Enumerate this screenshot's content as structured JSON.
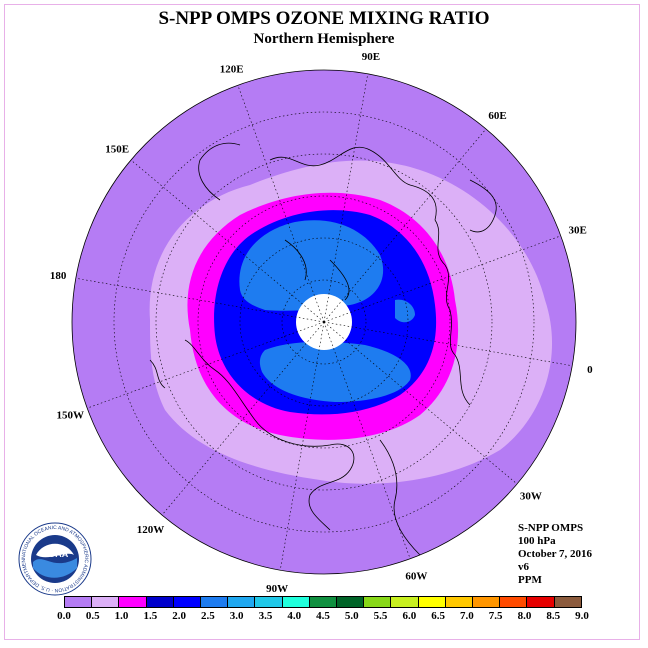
{
  "title": "S-NPP OMPS OZONE MIXING RATIO",
  "subtitle": "Northern Hemisphere",
  "longitude_labels": [
    "90E",
    "60E",
    "30E",
    "0",
    "30W",
    "60W",
    "90W",
    "120W",
    "150W",
    "180",
    "150E",
    "120E"
  ],
  "info": {
    "instrument": "S-NPP OMPS",
    "level": "100 hPa",
    "date": "October 7, 2016",
    "version": "v6",
    "units": "PPM"
  },
  "logo": {
    "text": "NOAA",
    "ring_text": "NATIONAL OCEANIC AND ATMOSPHERIC ADMINISTRATION · U.S. DEPARTMENT OF COMMERCE"
  },
  "colorbar": {
    "ticks": [
      "0.0",
      "0.5",
      "1.0",
      "1.5",
      "2.0",
      "2.5",
      "3.0",
      "3.5",
      "4.0",
      "4.5",
      "5.0",
      "5.5",
      "6.0",
      "6.5",
      "7.0",
      "7.5",
      "8.0",
      "8.5",
      "9.0"
    ],
    "colors": [
      "#b57cf4",
      "#dcb0f7",
      "#ff00ff",
      "#0000cc",
      "#0000ff",
      "#1e7cf0",
      "#20a8f0",
      "#20c8e8",
      "#20ffdc",
      "#109040",
      "#006428",
      "#88d818",
      "#c8f020",
      "#ffff00",
      "#ffc800",
      "#ff9600",
      "#ff4b00",
      "#e60000",
      "#8b5a3c"
    ]
  },
  "map_colors": {
    "background": "#b57cf4",
    "band_0_5_1_0": "#dcb0f7",
    "band_1_0_1_5": "#ff00ff",
    "band_1_5_2_0": "#0000ff",
    "band_2_0_2_5": "#1e7cf0",
    "band_2_5_3_0": "#20a8f0",
    "pole_no_data": "#ffffff"
  }
}
